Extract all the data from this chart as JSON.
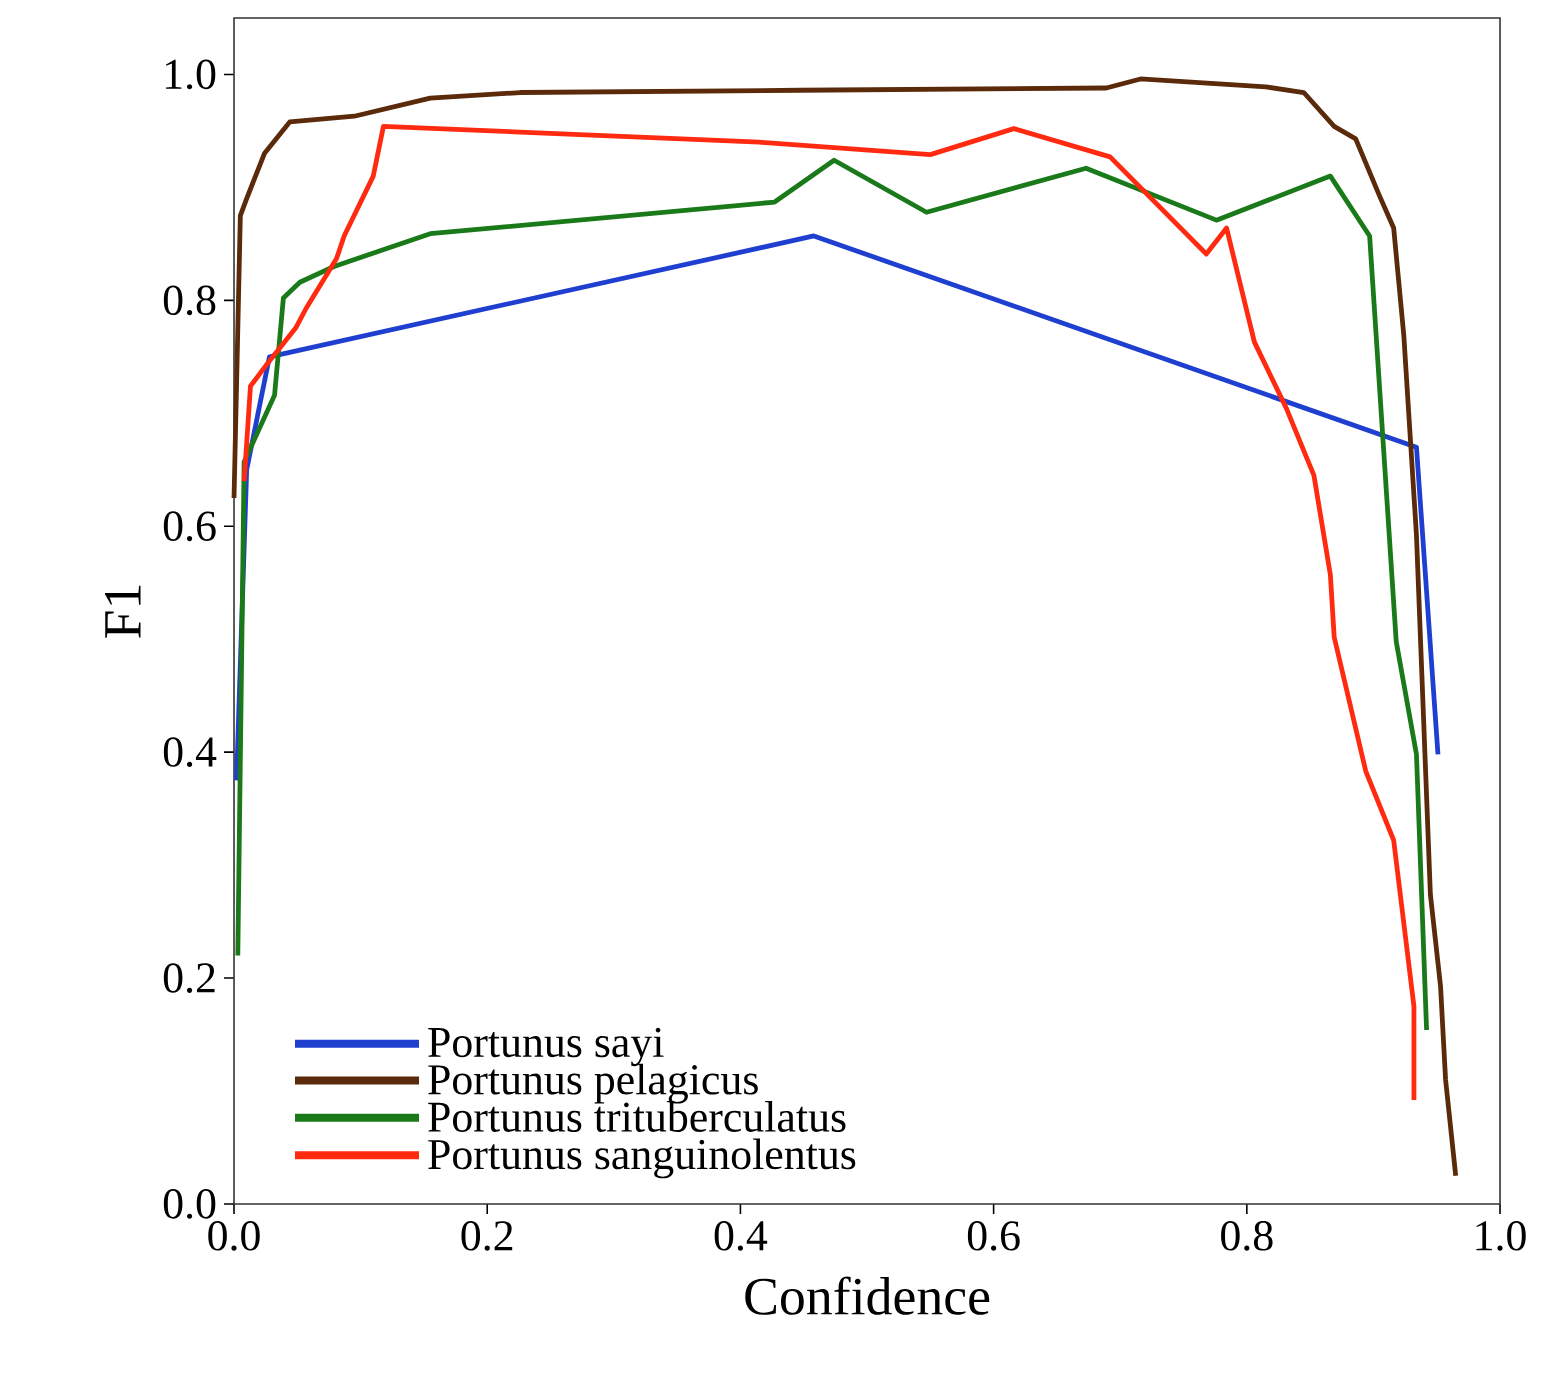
{
  "chart_data": {
    "type": "line",
    "xlabel": "Confidence",
    "ylabel": "F1",
    "xlim": [
      0,
      1
    ],
    "ylim": [
      0,
      1.05
    ],
    "xticks": [
      {
        "value": 0,
        "label": "0.0"
      },
      0.2,
      0.4,
      0.6,
      0.8,
      {
        "value": 1,
        "label": "1.0"
      }
    ],
    "yticks": [
      {
        "value": 0,
        "label": "0.0"
      },
      0.2,
      0.4,
      0.6,
      0.8,
      {
        "value": 1,
        "label": "1.0"
      }
    ],
    "legend": "bottom left",
    "grid": false,
    "series": [
      {
        "name": "Portunus sayi",
        "color": "#1f3fd0",
        "x": [
          0.002,
          0.01,
          0.028,
          0.458,
          0.934,
          0.951
        ],
        "values": [
          0.375,
          0.65,
          0.75,
          0.857,
          0.67,
          0.398
        ]
      },
      {
        "name": "Portunus pelagicus",
        "color": "#5a2a0a",
        "x": [
          0,
          0.005,
          0.01,
          0.024,
          0.044,
          0.095,
          0.155,
          0.226,
          0.447,
          0.689,
          0.716,
          0.815,
          0.845,
          0.869,
          0.886,
          0.905,
          0.916,
          0.924,
          0.934,
          0.945,
          0.953,
          0.957,
          0.965
        ],
        "values": [
          0.625,
          0.875,
          0.89,
          0.93,
          0.958,
          0.963,
          0.979,
          0.984,
          0.986,
          0.988,
          0.996,
          0.989,
          0.984,
          0.954,
          0.943,
          0.892,
          0.864,
          0.769,
          0.592,
          0.274,
          0.193,
          0.11,
          0.025
        ]
      },
      {
        "name": "Portunus trituberculatus",
        "color": "#1a7a1a",
        "x": [
          0.003,
          0.008,
          0.032,
          0.039,
          0.052,
          0.079,
          0.155,
          0.427,
          0.474,
          0.547,
          0.673,
          0.776,
          0.866,
          0.897,
          0.918,
          0.934,
          0.942
        ],
        "values": [
          0.22,
          0.657,
          0.716,
          0.802,
          0.816,
          0.83,
          0.859,
          0.887,
          0.924,
          0.878,
          0.917,
          0.871,
          0.91,
          0.857,
          0.498,
          0.398,
          0.154
        ]
      },
      {
        "name": "Portunus sanguinolentus",
        "color": "#ff2a10",
        "x": [
          0.008,
          0.013,
          0.025,
          0.049,
          0.057,
          0.081,
          0.087,
          0.11,
          0.118,
          0.415,
          0.55,
          0.616,
          0.692,
          0.768,
          0.784,
          0.806,
          0.831,
          0.853,
          0.866,
          0.869,
          0.894,
          0.916,
          0.932,
          0.932
        ],
        "values": [
          0.64,
          0.724,
          0.742,
          0.776,
          0.793,
          0.837,
          0.857,
          0.91,
          0.954,
          0.94,
          0.929,
          0.952,
          0.927,
          0.841,
          0.864,
          0.763,
          0.705,
          0.645,
          0.557,
          0.502,
          0.383,
          0.322,
          0.175,
          0.092
        ]
      }
    ]
  }
}
